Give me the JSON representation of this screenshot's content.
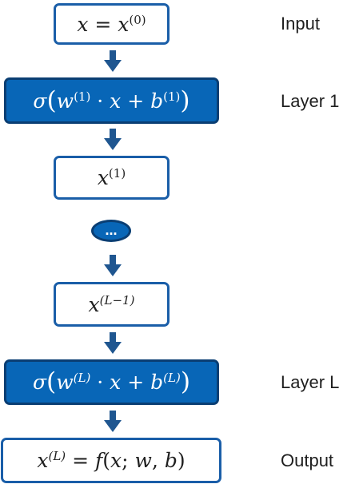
{
  "nodes": {
    "input": "x = x⁽⁰⁾",
    "layer_1": "σ(w⁽¹⁾ · x + b⁽¹⁾)",
    "hidden_1": "x⁽¹⁾",
    "ellipsis": "…",
    "hidden_l_minus_1": "x⁽ᴸ⁻¹⁾",
    "layer_l": "σ(w⁽ᴸ⁾ · x + b⁽ᴸ⁾)",
    "output": "x⁽ᴸ⁾ = f(x; w, b)"
  },
  "labels": {
    "input": "Input",
    "layer_1": "Layer 1",
    "layer_l": "Layer L",
    "output": "Output"
  },
  "colors": {
    "node_fill": "#0866b7",
    "node_border": "#0a3e73",
    "outline": "#1a5ea8",
    "arrow": "#1f5690"
  }
}
